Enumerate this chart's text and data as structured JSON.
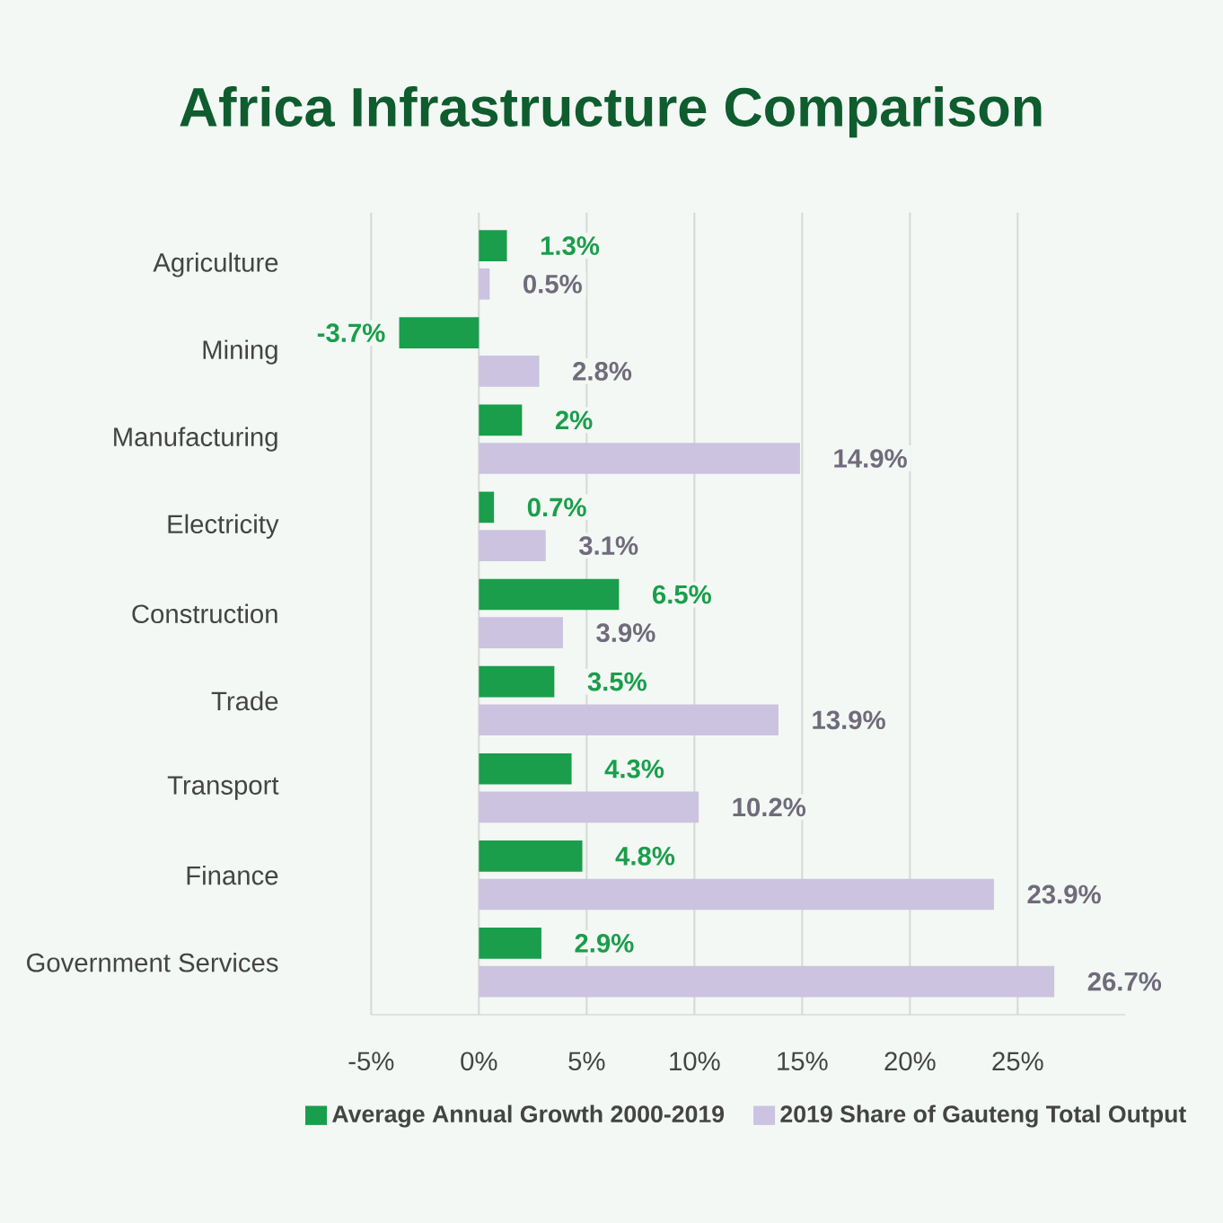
{
  "chart_data": {
    "type": "bar",
    "orientation": "horizontal",
    "title": "Africa Infrastructure Comparison",
    "categories": [
      "Agriculture",
      "Mining",
      "Manufacturing",
      "Electricity",
      "Construction",
      "Trade",
      "Transport",
      "Finance",
      "Government Services"
    ],
    "series": [
      {
        "name": "Average Annual Growth 2000-2019",
        "color": "#1a9e4b",
        "values": [
          1.3,
          -3.7,
          2,
          0.7,
          6.5,
          3.5,
          4.3,
          4.8,
          2.9
        ],
        "value_labels": [
          "1.3%",
          "-3.7%",
          "2%",
          "0.7%",
          "6.5%",
          "3.5%",
          "4.3%",
          "4.8%",
          "2.9%"
        ]
      },
      {
        "name": "2019 Share of Gauteng Total Output",
        "color": "#cbc3e0",
        "values": [
          0.5,
          2.8,
          14.9,
          3.1,
          3.9,
          13.9,
          10.2,
          23.9,
          26.7
        ],
        "value_labels": [
          "0.5%",
          "2.8%",
          "14.9%",
          "3.1%",
          "3.9%",
          "13.9%",
          "10.2%",
          "23.9%",
          "26.7%"
        ]
      }
    ],
    "xlim": [
      -5,
      30
    ],
    "xticks": [
      {
        "value": -5,
        "label": "-5%"
      },
      {
        "value": 0,
        "label": "0%"
      },
      {
        "value": 5,
        "label": "5%"
      },
      {
        "value": 10,
        "label": "10%"
      },
      {
        "value": 15,
        "label": "15%"
      },
      {
        "value": 20,
        "label": "20%"
      },
      {
        "value": 25,
        "label": "25%"
      }
    ],
    "grid": "x",
    "legend": "bottom"
  }
}
